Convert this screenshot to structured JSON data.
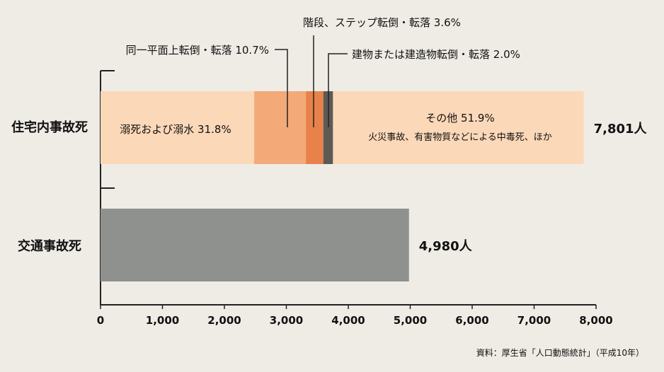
{
  "chart_data": {
    "type": "bar",
    "orientation": "horizontal",
    "stacked": true,
    "categories": [
      "住宅内事故死",
      "交通事故死"
    ],
    "totals": [
      {
        "category": "住宅内事故死",
        "value": 7801,
        "label": "7,801人"
      },
      {
        "category": "交通事故死",
        "value": 4980,
        "label": "4,980人"
      }
    ],
    "segments": [
      {
        "category": "住宅内事故死",
        "label": "溺死および溺水 31.8%",
        "percent": 31.8,
        "value": 2481,
        "color": "#fbd8b8"
      },
      {
        "category": "住宅内事故死",
        "label": "同一平面上転倒・転落 10.7%",
        "percent": 10.7,
        "value": 835,
        "color": "#f3a978"
      },
      {
        "category": "住宅内事故死",
        "label": "階段、ステップ転倒・転落 3.6%",
        "percent": 3.6,
        "value": 281,
        "color": "#e8824a"
      },
      {
        "category": "住宅内事故死",
        "label": "建物または建造物転倒・転落 2.0%",
        "percent": 2.0,
        "value": 156,
        "color": "#5d5a55"
      },
      {
        "category": "住宅内事故死",
        "label": "その他 51.9%",
        "sublabel": "火災事故、有害物質などによる中毒死、ほか",
        "percent": 51.9,
        "value": 4048,
        "color": "#fbd8b8"
      },
      {
        "category": "交通事故死",
        "label": "",
        "percent": 100,
        "value": 4980,
        "color": "#8f918f"
      }
    ],
    "xlim": [
      0,
      8000
    ],
    "xticks": [
      "0",
      "1,000",
      "2,000",
      "3,000",
      "4,000",
      "5,000",
      "6,000",
      "7,000",
      "8,000"
    ],
    "grid": false,
    "source": "資料：厚生省「人口動態統計」（平成10年）"
  }
}
